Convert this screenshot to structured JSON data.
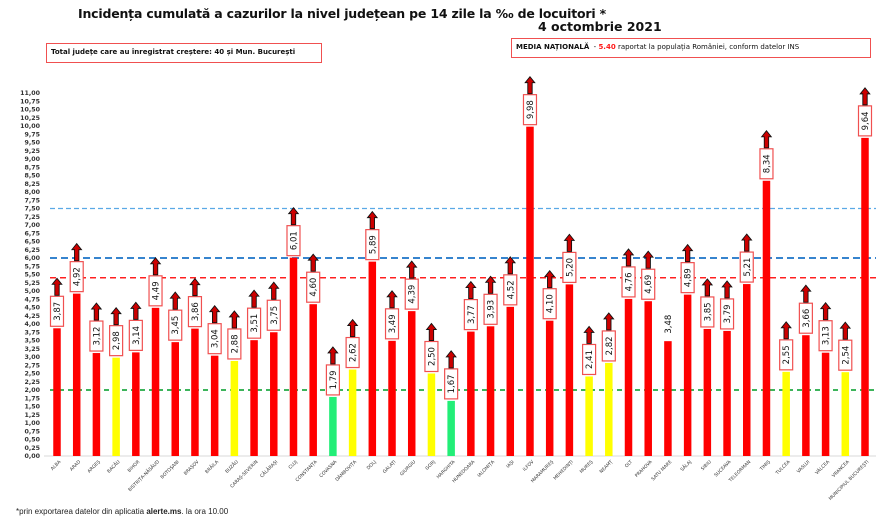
{
  "header": {
    "title": "Incidența cumulată a cazurilor la nivel județean pe 14 zile la ‰ de locuitori *",
    "date": "4 octombrie 2021"
  },
  "info_left": {
    "text": "Total județe care au înregistrat creștere:  40 și Mun. București"
  },
  "info_right": {
    "label": "MEDIA NAȚIONALĂ",
    "separator": "  - ",
    "value": "5.40",
    "text": " raportat la populația României, conform datelor INS"
  },
  "footnote": {
    "prefix": "*prin exportarea datelor din aplicatia ",
    "bold": "alerte.ms",
    "suffix": ". la ora 10.00"
  },
  "colors": {
    "red": "#ff0000",
    "yellow": "#ffff00",
    "green": "#22ee77",
    "line_light_blue": "#5aa9e6",
    "line_blue": "#1a73c8",
    "line_red": "#ff2020",
    "line_green": "#22aa44",
    "arrow_fill": "#cc0000",
    "label_border": "#f05050"
  },
  "chart_data": {
    "type": "bar",
    "title": "Incidența cumulată a cazurilor la nivel județean pe 14 zile la ‰ de locuitori *",
    "ylim": [
      0,
      11
    ],
    "ytick_step": 0.25,
    "yticks": [
      "0,00",
      "0,25",
      "0,50",
      "0,75",
      "1,00",
      "1,25",
      "1,50",
      "1,75",
      "2,00",
      "2,25",
      "2,50",
      "2,75",
      "3,00",
      "3,25",
      "3,50",
      "3,75",
      "4,00",
      "4,25",
      "4,50",
      "4,75",
      "5,00",
      "5,25",
      "5,50",
      "5,75",
      "6,00",
      "6,25",
      "6,50",
      "6,75",
      "7,00",
      "7,25",
      "7,50",
      "7,75",
      "8,00",
      "8,25",
      "8,50",
      "8,75",
      "9,00",
      "9,25",
      "9,50",
      "9,75",
      "10,00",
      "10,25",
      "10,50",
      "10,75",
      "11,00"
    ],
    "reference_lines": [
      {
        "value": 7.5,
        "color": "light-blue",
        "style": "dashed"
      },
      {
        "value": 6.0,
        "color": "blue",
        "style": "dashed"
      },
      {
        "value": 5.4,
        "color": "red",
        "style": "dashed"
      },
      {
        "value": 2.0,
        "color": "green",
        "style": "dashed"
      }
    ],
    "categories": [
      "ALBA",
      "ARAD",
      "ARGEȘ",
      "BACĂU",
      "BIHOR",
      "BISTRIȚA-NĂSĂUD",
      "BOTOȘANI",
      "BRAȘOV",
      "BRĂILA",
      "BUZĂU",
      "CARAȘ-SEVERIN",
      "CĂLĂRAȘI",
      "CLUJ",
      "CONSTANȚA",
      "COVASNA",
      "DÂMBOVIȚA",
      "DOLJ",
      "GALAȚI",
      "GIURGIU",
      "GORJ",
      "HARGHITA",
      "HUNEDOARA",
      "IALOMIȚA",
      "IAȘI",
      "ILFOV",
      "MARAMUREȘ",
      "MEHEDINȚI",
      "MUREȘ",
      "NEAMȚ",
      "OLT",
      "PRAHOVA",
      "SATU MARE",
      "SĂLAJ",
      "SIBIU",
      "SUCEAVA",
      "TELEORMAN",
      "TIMIȘ",
      "TULCEA",
      "VASLUI",
      "VÂLCEA",
      "VRANCEA",
      "MUNICIPIUL BUCUREȘTI"
    ],
    "values": [
      3.87,
      4.92,
      3.12,
      2.98,
      3.14,
      4.49,
      3.45,
      3.86,
      3.04,
      2.88,
      3.51,
      3.75,
      6.01,
      4.6,
      1.79,
      2.62,
      5.89,
      3.49,
      4.39,
      2.5,
      1.67,
      3.77,
      3.93,
      4.52,
      9.98,
      4.1,
      5.2,
      2.41,
      2.82,
      4.76,
      4.69,
      3.48,
      4.89,
      3.85,
      3.79,
      5.21,
      8.34,
      2.55,
      3.66,
      3.13,
      2.54,
      9.64
    ],
    "labels": [
      "3,87",
      "4,92",
      "3,12",
      "2,98",
      "3,14",
      "4,49",
      "3,45",
      "3,86",
      "3,04",
      "2,88",
      "3,51",
      "3,75",
      "6,01",
      "4,60",
      "1,79",
      "2,62",
      "5,89",
      "3,49",
      "4,39",
      "2,50",
      "1,67",
      "3,77",
      "3,93",
      "4,52",
      "9,98",
      "4,10",
      "5,20",
      "2,41",
      "2,82",
      "4,76",
      "4,69",
      "3,48",
      "4,89",
      "3,85",
      "3,79",
      "5,21",
      "8,34",
      "2,55",
      "3,66",
      "3,13",
      "2,54",
      "9,64"
    ],
    "bar_colors": [
      "red",
      "red",
      "red",
      "yellow",
      "red",
      "red",
      "red",
      "red",
      "red",
      "yellow",
      "red",
      "red",
      "red",
      "red",
      "green",
      "yellow",
      "red",
      "red",
      "red",
      "yellow",
      "green",
      "red",
      "red",
      "red",
      "red",
      "red",
      "red",
      "yellow",
      "yellow",
      "red",
      "red",
      "red",
      "red",
      "red",
      "red",
      "red",
      "red",
      "yellow",
      "red",
      "red",
      "yellow",
      "red"
    ],
    "increase_arrow": [
      true,
      true,
      true,
      true,
      true,
      true,
      true,
      true,
      true,
      true,
      true,
      true,
      true,
      true,
      true,
      true,
      true,
      true,
      true,
      true,
      true,
      true,
      true,
      true,
      true,
      true,
      true,
      true,
      true,
      true,
      true,
      false,
      true,
      true,
      true,
      true,
      true,
      true,
      true,
      true,
      true,
      true
    ]
  }
}
